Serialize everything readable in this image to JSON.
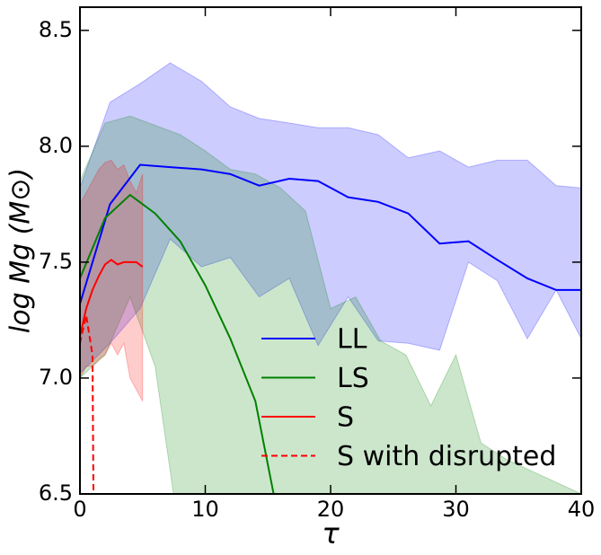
{
  "chart_data": {
    "type": "line",
    "xlabel": "τ",
    "ylabel": "log Mg (M⊙)",
    "xlim": [
      0,
      40
    ],
    "ylim": [
      6.5,
      8.6
    ],
    "xticks": [
      0,
      10,
      20,
      30,
      40
    ],
    "yticks": [
      6.5,
      {
        "value": 7,
        "label": "7.0"
      },
      7.5,
      {
        "value": 8,
        "label": "8.0"
      },
      8.5
    ],
    "legend": "lower right",
    "series": [
      {
        "name": "LL",
        "color": "#0000ff",
        "dash": false,
        "x": [
          0,
          2.4,
          4.8,
          7.2,
          9.7,
          12,
          14.3,
          16.7,
          19,
          21.4,
          23.8,
          26.2,
          28.7,
          31,
          33.3,
          35.7,
          38,
          40
        ],
        "values": [
          7.32,
          7.75,
          7.92,
          7.91,
          7.9,
          7.88,
          7.83,
          7.86,
          7.85,
          7.78,
          7.76,
          7.71,
          7.58,
          7.59,
          7.51,
          7.43,
          7.38,
          7.38
        ],
        "upper": [
          7.82,
          8.19,
          8.27,
          8.36,
          8.28,
          8.17,
          8.12,
          8.1,
          8.08,
          8.08,
          8.05,
          7.95,
          7.98,
          7.91,
          7.94,
          7.94,
          7.83,
          7.82
        ],
        "lower": [
          7.02,
          7.15,
          7.3,
          7.6,
          7.48,
          7.52,
          7.35,
          7.43,
          7.14,
          7.35,
          7.16,
          7.15,
          7.12,
          7.5,
          7.42,
          7.17,
          7.38,
          7.17
        ]
      },
      {
        "name": "LS",
        "color": "#008000",
        "dash": false,
        "x": [
          0,
          2,
          4,
          6,
          8,
          10,
          12,
          14,
          16,
          18,
          20,
          22,
          24,
          26,
          28,
          30,
          32,
          34,
          36,
          38,
          40
        ],
        "values": [
          7.43,
          7.69,
          7.79,
          7.71,
          7.59,
          7.4,
          7.17,
          6.9,
          6.35,
          null,
          null,
          null,
          null,
          null,
          null,
          null,
          null,
          null,
          null,
          null,
          null
        ],
        "upper": [
          7.85,
          8.1,
          8.13,
          8.09,
          8.05,
          7.98,
          7.9,
          7.88,
          7.82,
          7.72,
          7.3,
          7.35,
          7.16,
          7.1,
          6.88,
          7.1,
          6.72,
          6.65,
          6.6,
          6.55,
          6.5
        ],
        "lower": [
          7.0,
          7.1,
          7.35,
          7.05,
          6.3,
          6.3,
          6.3,
          6.3,
          6.3,
          6.3,
          6.3,
          6.3,
          6.3,
          6.3,
          6.3,
          6.3,
          6.3,
          6.3,
          6.3,
          6.3,
          6.3
        ]
      },
      {
        "name": "S",
        "color": "#ff0000",
        "dash": false,
        "x": [
          0,
          0.5,
          1,
          1.5,
          2,
          2.5,
          3,
          3.5,
          4,
          4.5,
          5
        ],
        "values": [
          7.18,
          7.3,
          7.38,
          7.44,
          7.49,
          7.51,
          7.49,
          7.5,
          7.5,
          7.5,
          7.48
        ],
        "upper": [
          7.75,
          7.8,
          7.85,
          7.9,
          7.93,
          7.94,
          7.9,
          7.92,
          7.85,
          7.8,
          7.88
        ],
        "lower": [
          7.0,
          7.05,
          7.05,
          7.08,
          7.1,
          7.15,
          7.1,
          7.15,
          7.0,
          6.95,
          6.9
        ]
      },
      {
        "name": "S with disrupted",
        "color": "#ff0000",
        "dash": true,
        "x": [
          0,
          0.5,
          1,
          1.1
        ],
        "values": [
          7.15,
          7.27,
          7.1,
          6.3
        ]
      }
    ]
  }
}
